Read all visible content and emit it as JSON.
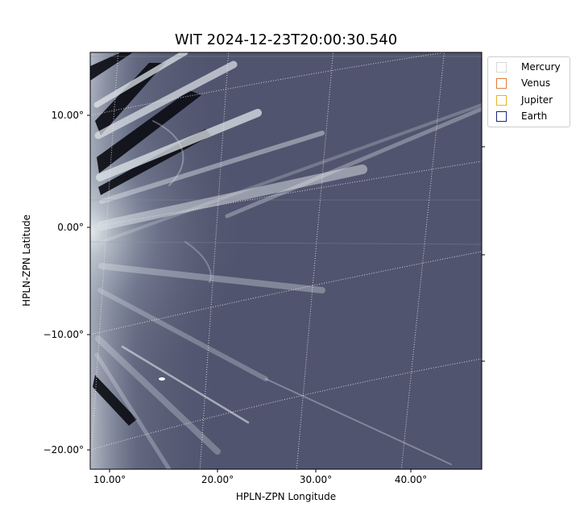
{
  "figure": {
    "title": "WIT 2024-12-23T20:00:30.540",
    "xlabel": "HPLN-ZPN Longitude",
    "ylabel": "HPLN-ZPN Latitude"
  },
  "axes": {
    "y_ticks": [
      "10.00°",
      "0.00°",
      "−10.00°",
      "−20.00°"
    ],
    "x_ticks": [
      "10.00°",
      "20.00°",
      "30.00°",
      "40.00°"
    ]
  },
  "legend": {
    "placement": "outside-right-top",
    "items": [
      {
        "label": "Mercury",
        "color": "#d8d8d8"
      },
      {
        "label": "Venus",
        "color": "#e07b39"
      },
      {
        "label": "Jupiter",
        "color": "#e6b422"
      },
      {
        "label": "Earth",
        "color": "#1a237e"
      }
    ]
  },
  "image": {
    "colormap": "blue-gray",
    "background_color": "#50546e",
    "highlight_color": "#dfe6ea",
    "grid": "on"
  }
}
